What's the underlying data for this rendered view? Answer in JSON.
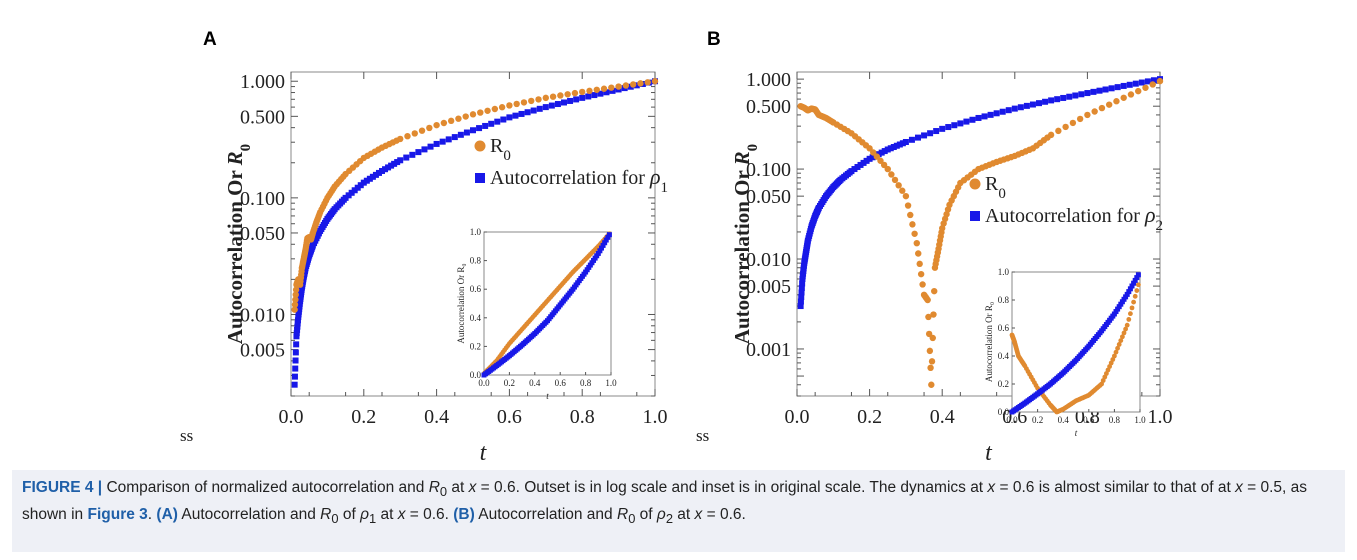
{
  "figure": {
    "panel_letters": [
      "A",
      "B"
    ],
    "stray_marks": [
      "ss",
      "ss"
    ],
    "colors": {
      "r0": "#e08a30",
      "autocorr": "#1818e8",
      "caption_bg": "#eef0f6",
      "caption_accent": "#1f5fa8"
    }
  },
  "caption": {
    "figure_label": "FIGURE 4 |",
    "text_1": " Comparison of normalized autocorrelation and ",
    "text_2": " at ",
    "text_3": " = 0.6. Outset is in log scale and inset is in original scale. The dynamics at ",
    "text_4": " = 0.6 is almost similar to that of at ",
    "text_5": " = 0.5, as shown in ",
    "figure_ref": "Figure 3",
    "text_6": ". ",
    "part_a": "(A)",
    "text_a": " Autocorrelation and ",
    "text_a2": " of ",
    "text_a3": " at ",
    "text_a4": " = 0.6. ",
    "part_b": "(B)",
    "text_b": " Autocorrelation and ",
    "text_b2": " of ",
    "text_b3": " at ",
    "text_b4": " = 0.6.",
    "sym_R": "R",
    "sym_R_sub": "0",
    "sym_x": "x",
    "sym_rho": "ρ",
    "sym_rho1_sub": "1",
    "sym_rho2_sub": "2"
  },
  "chart_data": [
    {
      "type": "scatter",
      "panel": "A",
      "xlabel": "t",
      "ylabel": "Autocorrelation Or R0",
      "yscale": "log",
      "xlim": [
        0.0,
        1.0
      ],
      "ylim": [
        0.002,
        1.2
      ],
      "x_ticks": [
        "0.0",
        "0.2",
        "0.4",
        "0.6",
        "0.8",
        "1.0"
      ],
      "y_ticks": [
        "1.000",
        "0.500",
        "0.100",
        "0.050",
        "0.010",
        "0.005"
      ],
      "legend": [
        "R0",
        "Autocorrelation for ρ1"
      ],
      "legend_position": "right-middle",
      "series": [
        {
          "name": "R0",
          "marker": "circle",
          "x": [
            0.01,
            0.015,
            0.02,
            0.025,
            0.03,
            0.035,
            0.04,
            0.045,
            0.05,
            0.055,
            0.06,
            0.07,
            0.08,
            0.1,
            0.12,
            0.15,
            0.2,
            0.25,
            0.3,
            0.4,
            0.5,
            0.6,
            0.7,
            0.8,
            0.9,
            1.0
          ],
          "y": [
            0.011,
            0.018,
            0.02,
            0.018,
            0.025,
            0.03,
            0.036,
            0.045,
            0.046,
            0.044,
            0.05,
            0.062,
            0.075,
            0.1,
            0.125,
            0.16,
            0.22,
            0.27,
            0.32,
            0.42,
            0.52,
            0.62,
            0.72,
            0.81,
            0.9,
            1.0
          ]
        },
        {
          "name": "Autocorrelation for ρ1",
          "marker": "square",
          "x": [
            0.01,
            0.015,
            0.02,
            0.025,
            0.03,
            0.035,
            0.04,
            0.05,
            0.06,
            0.08,
            0.1,
            0.12,
            0.15,
            0.2,
            0.25,
            0.3,
            0.4,
            0.5,
            0.6,
            0.7,
            0.8,
            0.9,
            1.0
          ],
          "y": [
            0.0025,
            0.0065,
            0.0095,
            0.013,
            0.017,
            0.021,
            0.025,
            0.032,
            0.039,
            0.052,
            0.066,
            0.08,
            0.1,
            0.135,
            0.17,
            0.21,
            0.29,
            0.38,
            0.49,
            0.6,
            0.72,
            0.85,
            1.0
          ]
        }
      ],
      "inset": {
        "type": "scatter",
        "xlabel": "t",
        "ylabel": "Autocorrelation Or R0",
        "xlim": [
          0,
          1
        ],
        "ylim": [
          0,
          1
        ],
        "x_ticks": [
          "0.0",
          "0.2",
          "0.4",
          "0.6",
          "0.8",
          "1.0"
        ],
        "y_ticks": [
          "0.0",
          "0.2",
          "0.4",
          "0.6",
          "0.8",
          "1.0"
        ],
        "series": [
          {
            "name": "R0",
            "x": [
              0,
              0.1,
              0.2,
              0.3,
              0.4,
              0.5,
              0.6,
              0.7,
              0.8,
              0.9,
              1.0
            ],
            "y": [
              0.01,
              0.1,
              0.22,
              0.32,
              0.42,
              0.52,
              0.62,
              0.72,
              0.81,
              0.9,
              1.0
            ]
          },
          {
            "name": "Autocorrelation for ρ1",
            "x": [
              0,
              0.1,
              0.2,
              0.3,
              0.4,
              0.5,
              0.6,
              0.7,
              0.8,
              0.9,
              1.0
            ],
            "y": [
              0.0,
              0.066,
              0.135,
              0.21,
              0.29,
              0.38,
              0.49,
              0.6,
              0.72,
              0.85,
              1.0
            ]
          }
        ]
      }
    },
    {
      "type": "scatter",
      "panel": "B",
      "xlabel": "t",
      "ylabel": "Autocorrelation Or R0",
      "yscale": "log",
      "xlim": [
        0.0,
        1.0
      ],
      "ylim": [
        0.0003,
        1.2
      ],
      "x_ticks": [
        "0.0",
        "0.2",
        "0.4",
        "0.6",
        "0.8",
        "1.0"
      ],
      "y_ticks": [
        "1.000",
        "0.500",
        "0.100",
        "0.050",
        "0.010",
        "0.005",
        "0.001"
      ],
      "legend": [
        "R0",
        "Autocorrelation for ρ2"
      ],
      "legend_position": "right-middle",
      "series": [
        {
          "name": "R0",
          "marker": "circle",
          "x": [
            0.01,
            0.02,
            0.03,
            0.04,
            0.05,
            0.06,
            0.08,
            0.1,
            0.15,
            0.2,
            0.25,
            0.3,
            0.33,
            0.35,
            0.36,
            0.37,
            0.38,
            0.39,
            0.4,
            0.42,
            0.45,
            0.5,
            0.55,
            0.6,
            0.65,
            0.7,
            0.8,
            0.9,
            1.0
          ],
          "y": [
            0.5,
            0.48,
            0.45,
            0.47,
            0.46,
            0.4,
            0.37,
            0.33,
            0.25,
            0.17,
            0.1,
            0.05,
            0.015,
            0.004,
            0.0035,
            0.0004,
            0.008,
            0.013,
            0.022,
            0.04,
            0.07,
            0.1,
            0.12,
            0.14,
            0.17,
            0.24,
            0.4,
            0.62,
            0.95
          ]
        },
        {
          "name": "Autocorrelation for ρ2",
          "marker": "square",
          "x": [
            0.01,
            0.015,
            0.02,
            0.025,
            0.03,
            0.04,
            0.05,
            0.06,
            0.08,
            0.1,
            0.12,
            0.15,
            0.2,
            0.25,
            0.3,
            0.4,
            0.5,
            0.6,
            0.7,
            0.8,
            0.9,
            1.0
          ],
          "y": [
            0.003,
            0.006,
            0.009,
            0.012,
            0.016,
            0.023,
            0.03,
            0.037,
            0.05,
            0.063,
            0.076,
            0.095,
            0.13,
            0.165,
            0.2,
            0.28,
            0.37,
            0.47,
            0.58,
            0.7,
            0.84,
            1.0
          ]
        }
      ],
      "inset": {
        "type": "scatter",
        "xlabel": "t",
        "ylabel": "Autocorrelation Or R0",
        "xlim": [
          0,
          1
        ],
        "ylim": [
          0,
          1
        ],
        "x_ticks": [
          "0.0",
          "0.2",
          "0.4",
          "0.6",
          "0.8",
          "1.0"
        ],
        "y_ticks": [
          "0.0",
          "0.2",
          "0.4",
          "0.6",
          "0.8",
          "1.0"
        ],
        "series": [
          {
            "name": "R0",
            "x": [
              0,
              0.02,
              0.05,
              0.1,
              0.2,
              0.3,
              0.35,
              0.4,
              0.5,
              0.6,
              0.7,
              0.8,
              0.9,
              1.0
            ],
            "y": [
              0.55,
              0.5,
              0.4,
              0.33,
              0.17,
              0.05,
              0.0,
              0.02,
              0.08,
              0.12,
              0.2,
              0.4,
              0.62,
              0.95
            ]
          },
          {
            "name": "Autocorrelation for ρ2",
            "x": [
              0,
              0.1,
              0.2,
              0.3,
              0.4,
              0.5,
              0.6,
              0.7,
              0.8,
              0.9,
              1.0
            ],
            "y": [
              0.0,
              0.063,
              0.13,
              0.2,
              0.28,
              0.37,
              0.47,
              0.58,
              0.7,
              0.84,
              1.0
            ]
          }
        ]
      }
    }
  ]
}
